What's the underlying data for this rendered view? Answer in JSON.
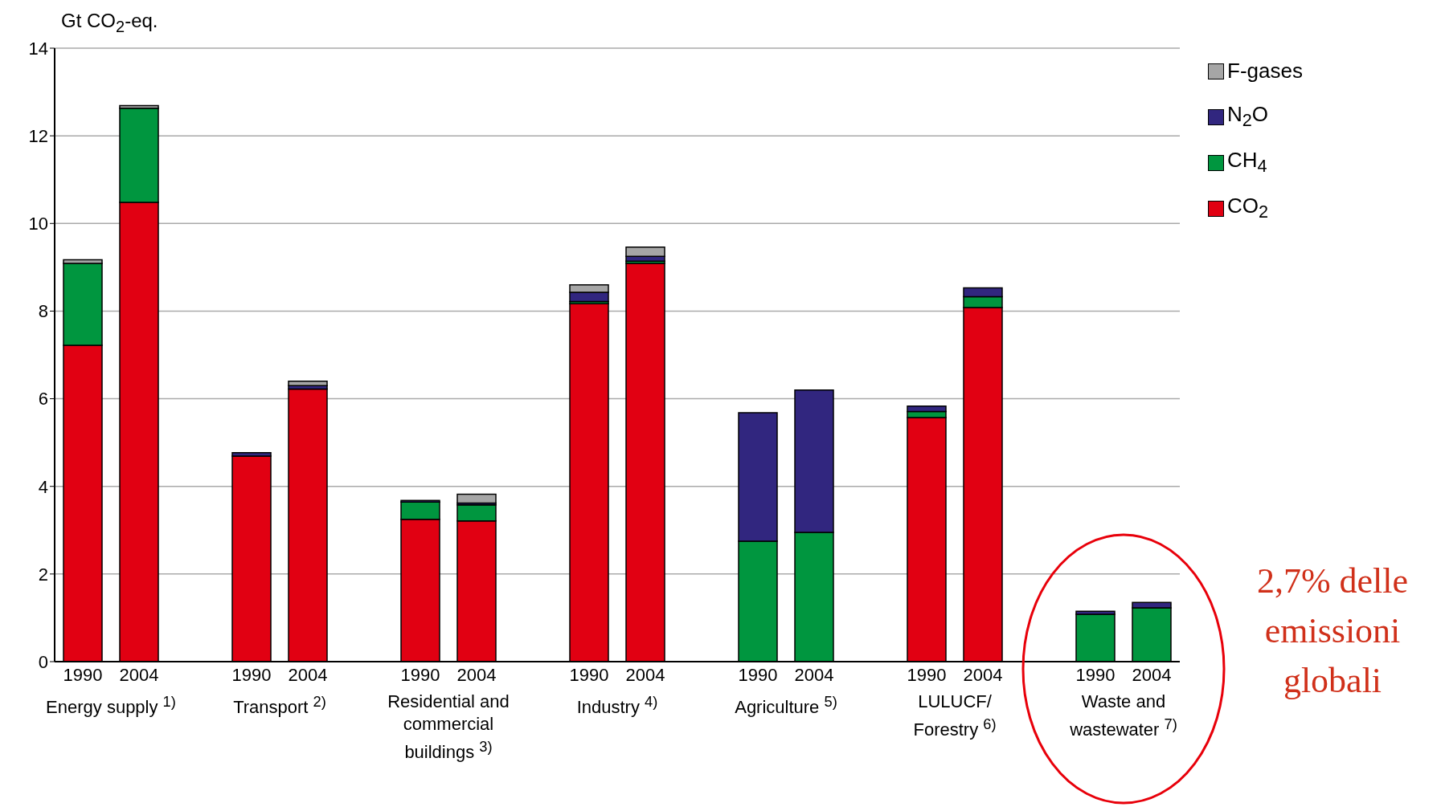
{
  "chart_data": {
    "type": "bar",
    "stacked": true,
    "ylabel": "Gt CO$_{2}$-eq.",
    "categories": [
      "1990",
      "2004",
      "1990",
      "2004",
      "1990",
      "2004",
      "1990",
      "2004",
      "1990",
      "2004",
      "1990",
      "2004",
      "1990",
      "2004"
    ],
    "series": [
      {
        "name": "CO$_{2}$",
        "color": "#e10012",
        "values": [
          7.22,
          10.48,
          4.69,
          6.22,
          3.25,
          3.21,
          8.17,
          9.09,
          null,
          0,
          5.57,
          8.08,
          0,
          0
        ]
      },
      {
        "name": "CH$_{4}$",
        "color": "#00963f",
        "values": [
          1.87,
          2.15,
          0,
          0,
          0.39,
          0.37,
          0.05,
          0.05,
          2.75,
          2.95,
          0.14,
          0.25,
          1.08,
          1.23
        ]
      },
      {
        "name": "N$_{2}$O",
        "color": "#31267f",
        "values": [
          0,
          0,
          0.08,
          0.08,
          0.04,
          0.04,
          0.21,
          0.11,
          2.93,
          3.25,
          0.12,
          0.2,
          0.07,
          0.12
        ]
      },
      {
        "name": "F-gases",
        "color": "#a6a6a6",
        "values": [
          0.08,
          0.06,
          0,
          0.1,
          0,
          0.2,
          0.17,
          0.21,
          0,
          0,
          0,
          0,
          0,
          0
        ]
      }
    ],
    "ylim": [
      0,
      14
    ],
    "yticks": [
      0,
      2,
      4,
      6,
      8,
      10,
      12,
      14
    ],
    "grid": "y",
    "legend": "top right",
    "annotations": [
      "Energy supply $^{1)}$",
      "Transport $^{2)}$",
      "Residential and commercial buildings $^{3)}$",
      "Industry $^{4)}$",
      "Agriculture $^{5)}$",
      "LULUCF/ Forestry $^{6)}$",
      "Waste and wastewater $^{7)}$",
      "2,7% delle emissioni globali"
    ]
  }
}
